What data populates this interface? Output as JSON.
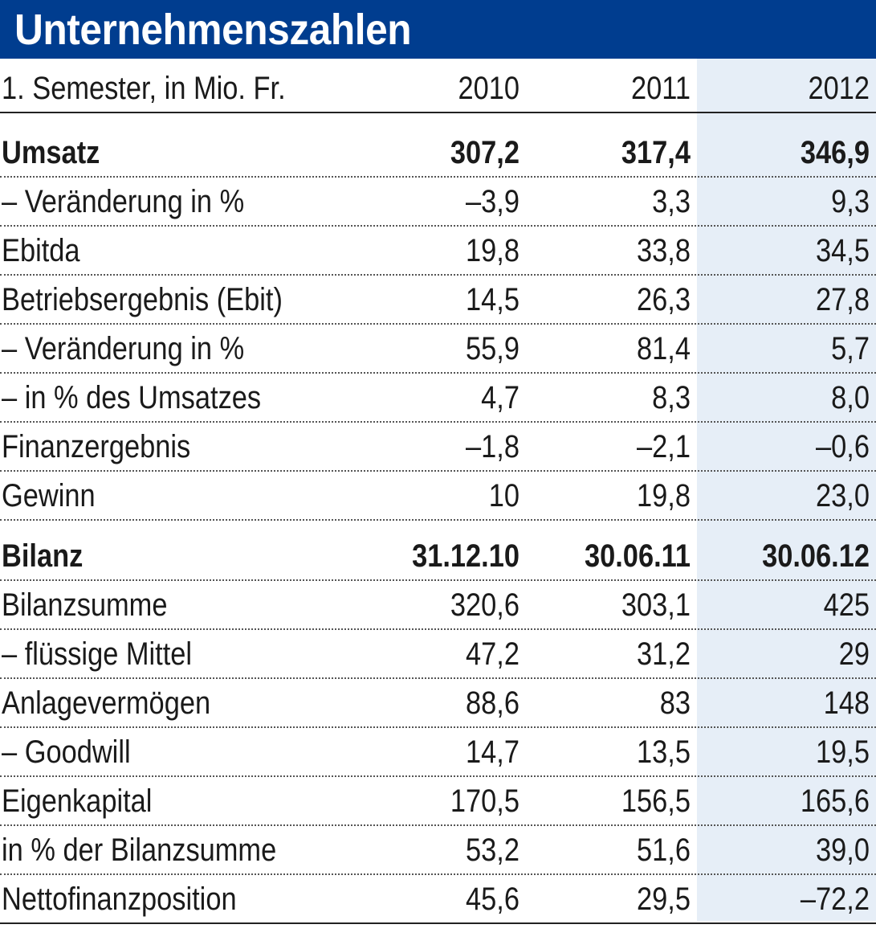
{
  "title": "Unternehmenszahlen",
  "chart_data": {
    "type": "table",
    "title": "Unternehmenszahlen",
    "header": {
      "label": "1. Semester, in Mio. Fr.",
      "columns": [
        "2010",
        "2011",
        "2012"
      ]
    },
    "rows": [
      {
        "label": "Umsatz",
        "values": [
          "307,2",
          "317,4",
          "346,9"
        ],
        "bold": true
      },
      {
        "label": "– Veränderung in %",
        "values": [
          "–3,9",
          "3,3",
          "9,3"
        ]
      },
      {
        "label": "Ebitda",
        "values": [
          "19,8",
          "33,8",
          "34,5"
        ]
      },
      {
        "label": "Betriebsergebnis (Ebit)",
        "values": [
          "14,5",
          "26,3",
          "27,8"
        ]
      },
      {
        "label": "– Veränderung in %",
        "values": [
          "55,9",
          "81,4",
          "5,7"
        ]
      },
      {
        "label": "– in % des Umsatzes",
        "values": [
          "4,7",
          "8,3",
          "8,0"
        ]
      },
      {
        "label": "Finanzergebnis",
        "values": [
          "–1,8",
          "–2,1",
          "–0,6"
        ]
      },
      {
        "label": "Gewinn",
        "values": [
          "10",
          "19,8",
          "23,0"
        ]
      },
      {
        "label": "Bilanz",
        "values": [
          "31.12.10",
          "30.06.11",
          "30.06.12"
        ],
        "bold": true
      },
      {
        "label": "Bilanzsumme",
        "values": [
          "320,6",
          "303,1",
          "425"
        ]
      },
      {
        "label": "– flüssige Mittel",
        "values": [
          "47,2",
          "31,2",
          "29"
        ]
      },
      {
        "label": "Anlagevermögen",
        "values": [
          "88,6",
          "83",
          "148"
        ]
      },
      {
        "label": "– Goodwill",
        "values": [
          "14,7",
          "13,5",
          "19,5"
        ]
      },
      {
        "label": "Eigenkapital",
        "values": [
          "170,5",
          "156,5",
          "165,6"
        ]
      },
      {
        "label": "in % der Bilanzsumme",
        "values": [
          "53,2",
          "51,6",
          "39,0"
        ]
      },
      {
        "label": "Nettofinanzposition",
        "values": [
          "45,6",
          "29,5",
          "–72,2"
        ]
      }
    ],
    "highlight_column": "2012",
    "colors": {
      "header_bg": "#003d8f",
      "header_text": "#ffffff",
      "highlight_bg": "#e6eef7"
    }
  }
}
